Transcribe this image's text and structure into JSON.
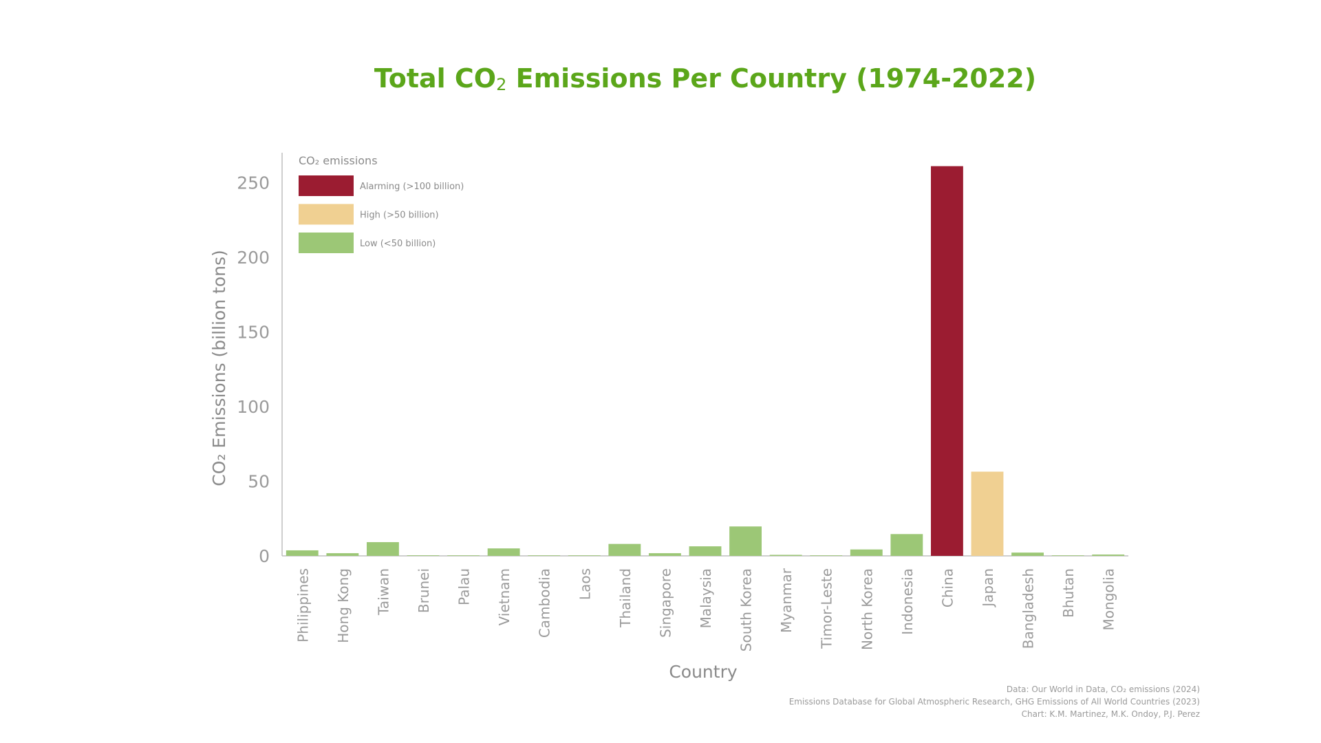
{
  "title": {
    "prefix": "Total CO",
    "sub": "2",
    "suffix": " Emissions Per Country (1974-2022)"
  },
  "credits": {
    "line1": "Data: Our World in Data, CO₂ emissions (2024)",
    "line2": "Emissions Database for Global Atmospheric Research, GHG Emissions of All World Countries (2023)",
    "line3": "Chart: K.M. Martinez, M.K. Ondoy, P.J. Perez"
  },
  "chart_data": {
    "type": "bar",
    "xlabel": "Country",
    "ylabel": "CO₂ Emissions (billion tons)",
    "ylim": [
      0,
      270
    ],
    "yticks": [
      0,
      50,
      100,
      150,
      200,
      250
    ],
    "grid": false,
    "legend": {
      "title": "CO₂ emissions",
      "placement": "top-left",
      "entries": [
        {
          "label": "Alarming (>100 billion)",
          "color": "#9b1c31"
        },
        {
          "label": "High (>50 billion)",
          "color": "#f0d092"
        },
        {
          "label": "Low (<50 billion)",
          "color": "#9cc776"
        }
      ]
    },
    "categories": [
      "Philippines",
      "Hong Kong",
      "Taiwan",
      "Brunei",
      "Palau",
      "Vietnam",
      "Cambodia",
      "Laos",
      "Thailand",
      "Singapore",
      "Malaysia",
      "South Korea",
      "Myanmar",
      "Timor-Leste",
      "North Korea",
      "Indonesia",
      "China",
      "Japan",
      "Bangladesh",
      "Bhutan",
      "Mongolia"
    ],
    "values": [
      3.7,
      1.8,
      9.2,
      0.4,
      0.05,
      5.0,
      0.2,
      0.2,
      8.0,
      1.8,
      6.4,
      19.7,
      0.7,
      0.03,
      4.3,
      14.6,
      261,
      56.4,
      2.2,
      0.05,
      0.9
    ],
    "bar_colors": [
      "#9cc776",
      "#9cc776",
      "#9cc776",
      "#9cc776",
      "#9cc776",
      "#9cc776",
      "#9cc776",
      "#9cc776",
      "#9cc776",
      "#9cc776",
      "#9cc776",
      "#9cc776",
      "#9cc776",
      "#9cc776",
      "#9cc776",
      "#9cc776",
      "#9b1c31",
      "#f0d092",
      "#9cc776",
      "#9cc776",
      "#9cc776"
    ]
  }
}
